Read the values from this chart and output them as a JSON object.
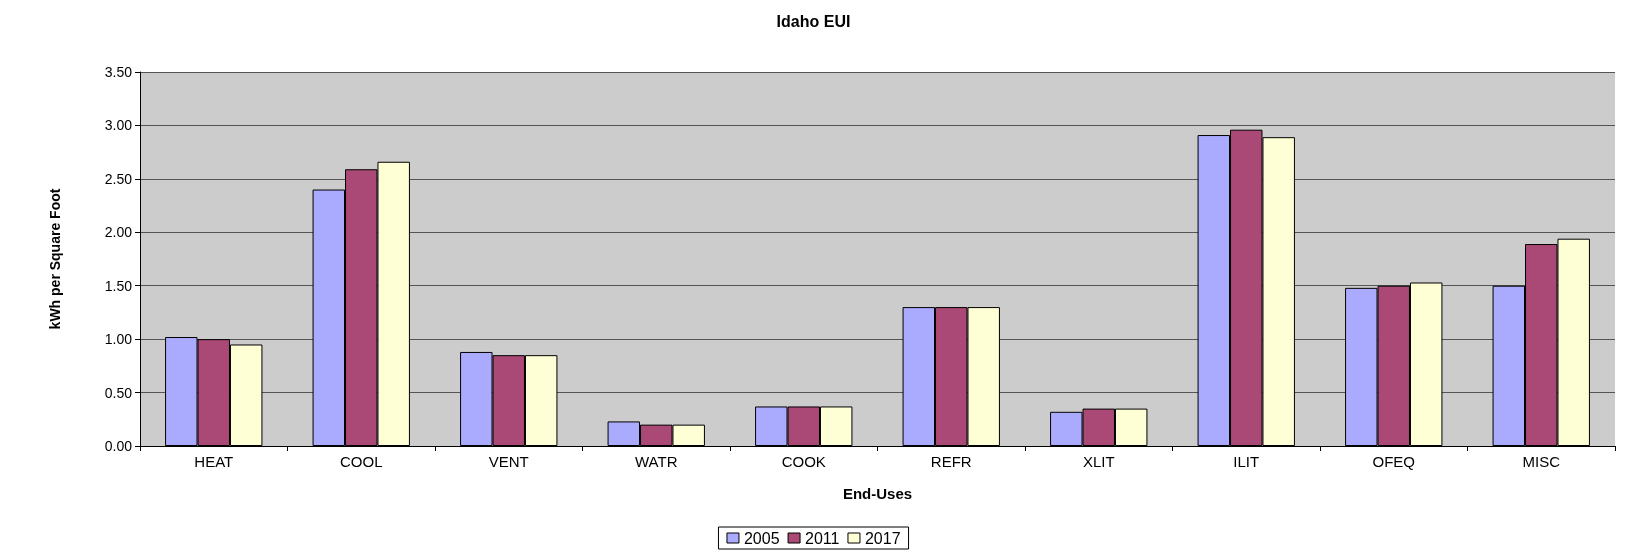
{
  "chart_data": {
    "type": "bar",
    "title": "Idaho EUI",
    "xlabel": "End-Uses",
    "ylabel": "kWh per Square Foot",
    "categories": [
      "HEAT",
      "COOL",
      "VENT",
      "WATR",
      "COOK",
      "REFR",
      "XLIT",
      "ILIT",
      "OFEQ",
      "MISC"
    ],
    "series": [
      {
        "name": "2005",
        "color": "#aaaaff",
        "values": [
          1.02,
          2.4,
          0.88,
          0.23,
          0.37,
          1.3,
          0.32,
          2.91,
          1.48,
          1.5
        ]
      },
      {
        "name": "2011",
        "color": "#aa4876",
        "values": [
          1.0,
          2.59,
          0.85,
          0.2,
          0.37,
          1.3,
          0.35,
          2.96,
          1.5,
          1.89
        ]
      },
      {
        "name": "2017",
        "color": "#ffffd6",
        "values": [
          0.95,
          2.66,
          0.85,
          0.2,
          0.37,
          1.3,
          0.35,
          2.89,
          1.53,
          1.94
        ]
      }
    ],
    "ylim": [
      0,
      3.5
    ],
    "yticks": [
      {
        "value": 0,
        "label": "0.00"
      },
      {
        "value": 0.5,
        "label": "0.50"
      },
      {
        "value": 1,
        "label": "1.00"
      },
      {
        "value": 1.5,
        "label": "1.50"
      },
      {
        "value": 2,
        "label": "2.00"
      },
      {
        "value": 2.5,
        "label": "2.50"
      },
      {
        "value": 3,
        "label": "3.00"
      },
      {
        "value": 3.5,
        "label": "3.50"
      }
    ],
    "grid": "y",
    "legend": "bottom"
  }
}
